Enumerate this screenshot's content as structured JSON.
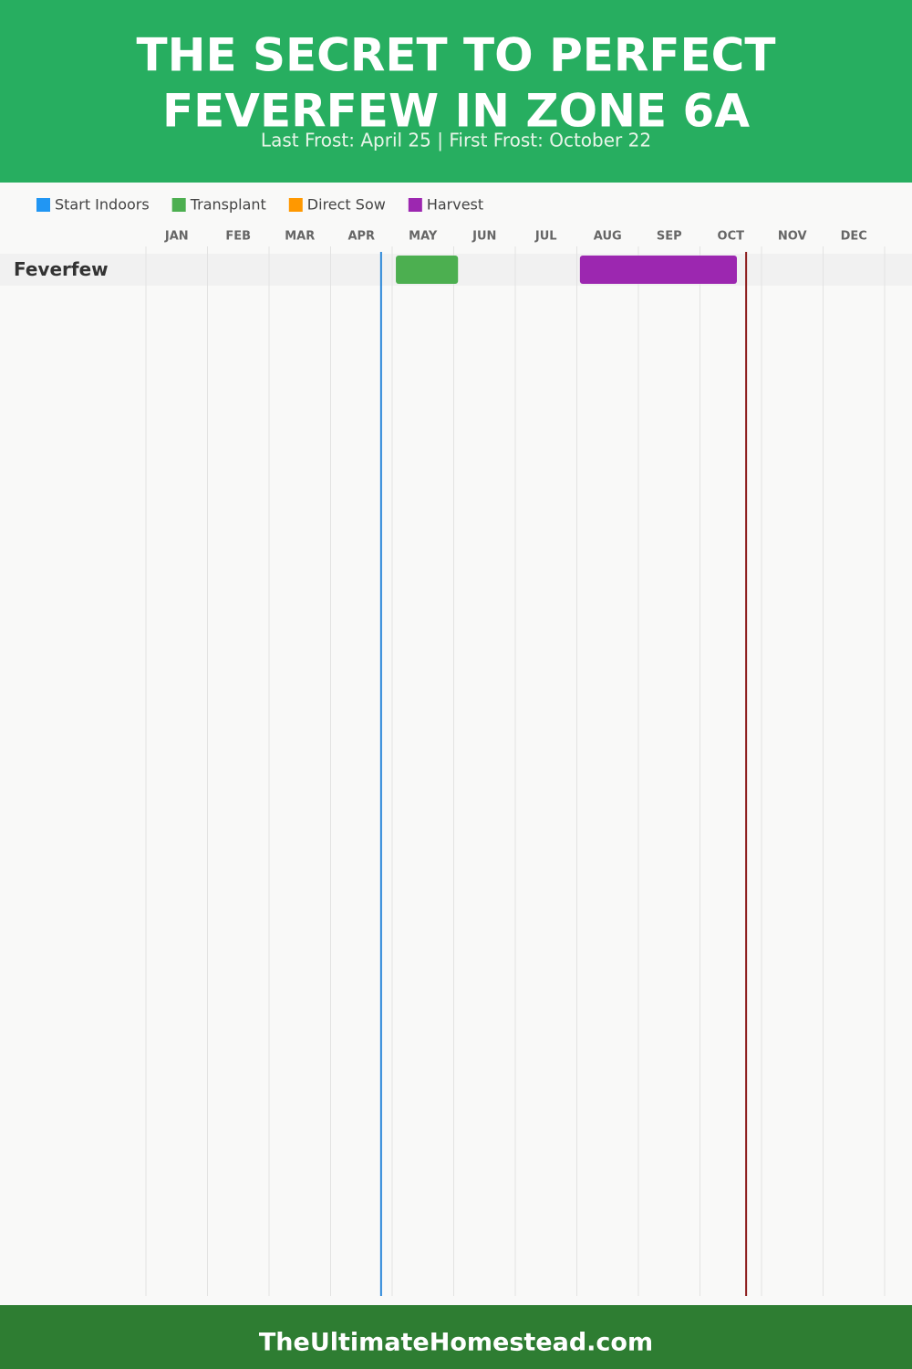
{
  "chart_data": {
    "type": "gantt",
    "title": [
      "THE SECRET TO PERFECT",
      "FEVERFEW IN ZONE 6A"
    ],
    "subtitle": "Last Frost: April 25 | First Frost: October 22",
    "categories": [
      "JAN",
      "FEB",
      "MAR",
      "APR",
      "MAY",
      "JUN",
      "JUL",
      "AUG",
      "SEP",
      "OCT",
      "NOV",
      "DEC"
    ],
    "xlim": [
      0,
      12
    ],
    "series": [
      {
        "name": "Start Indoors",
        "color": "#2196f3"
      },
      {
        "name": "Transplant",
        "color": "#4caf50"
      },
      {
        "name": "Direct Sow",
        "color": "#ff9800"
      },
      {
        "name": "Harvest",
        "color": "#9c27b0"
      }
    ],
    "rows": [
      {
        "name": "Feverfew",
        "bars": [
          {
            "series": 1,
            "start": 4.06,
            "end": 5.07
          },
          {
            "series": 3,
            "start": 7.05,
            "end": 9.6
          }
        ]
      }
    ],
    "frost_lines": [
      {
        "value": 3.82,
        "color": "#2b87d9"
      },
      {
        "value": 9.75,
        "color": "#8b1a1a"
      }
    ],
    "footer": "TheUltimateHomestead.com"
  }
}
